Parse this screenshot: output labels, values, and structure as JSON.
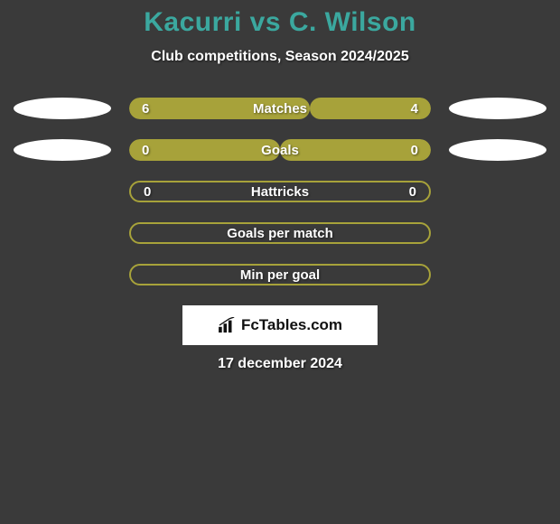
{
  "title": "Kacurri vs C. Wilson",
  "subtitle": "Club competitions, Season 2024/2025",
  "colors": {
    "title": "#3ba89f",
    "bar_olive": "#a7a23a",
    "bar_border": "#a7a23a",
    "bar_bg_empty": "#3a3a3a"
  },
  "rows": [
    {
      "label": "Matches",
      "left_value": "6",
      "right_value": "4",
      "left_fill_pct": 60,
      "right_fill_pct": 40,
      "left_color": "#a7a23a",
      "right_color": "#a7a23a",
      "show_left_ellipse": true,
      "show_right_ellipse": true
    },
    {
      "label": "Goals",
      "left_value": "0",
      "right_value": "0",
      "left_fill_pct": 50,
      "right_fill_pct": 50,
      "left_color": "#a7a23a",
      "right_color": "#a7a23a",
      "show_left_ellipse": true,
      "show_right_ellipse": true
    },
    {
      "label": "Hattricks",
      "left_value": "0",
      "right_value": "0",
      "left_fill_pct": 0,
      "right_fill_pct": 0,
      "left_color": "transparent",
      "right_color": "transparent",
      "show_left_ellipse": false,
      "show_right_ellipse": false
    },
    {
      "label": "Goals per match",
      "left_value": "",
      "right_value": "",
      "left_fill_pct": 0,
      "right_fill_pct": 0,
      "left_color": "transparent",
      "right_color": "transparent",
      "show_left_ellipse": false,
      "show_right_ellipse": false
    },
    {
      "label": "Min per goal",
      "left_value": "",
      "right_value": "",
      "left_fill_pct": 0,
      "right_fill_pct": 0,
      "left_color": "transparent",
      "right_color": "transparent",
      "show_left_ellipse": false,
      "show_right_ellipse": false
    }
  ],
  "brand": "FcTables.com",
  "date": "17 december 2024"
}
